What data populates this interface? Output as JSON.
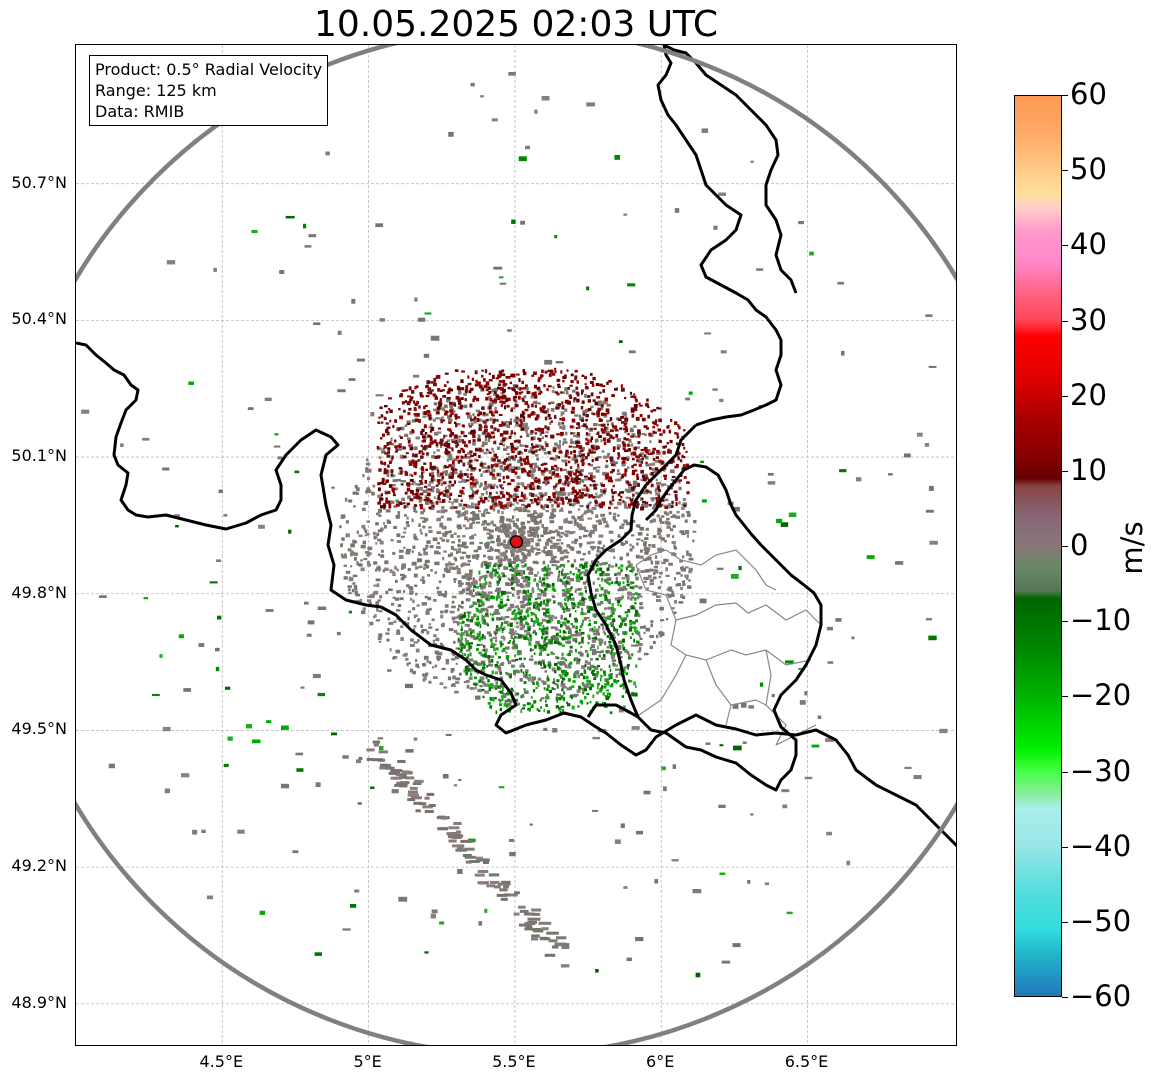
{
  "title": "10.05.2025 02:03 UTC",
  "info": {
    "product": "Product: 0.5° Radial Velocity",
    "range": "Range: 125 km",
    "data": "Data: RMIB"
  },
  "map": {
    "radar_site": {
      "lon": 5.505,
      "lat": 49.914
    },
    "range_km": 125,
    "lon_extent": [
      4.0,
      7.0
    ],
    "lat_extent": [
      48.8,
      51.0
    ],
    "lat_ticks": [
      {
        "value": 50.7,
        "label": "50.7°N"
      },
      {
        "value": 50.4,
        "label": "50.4°N"
      },
      {
        "value": 50.1,
        "label": "50.1°N"
      },
      {
        "value": 49.8,
        "label": "49.8°N"
      },
      {
        "value": 49.5,
        "label": "49.5°N"
      },
      {
        "value": 49.2,
        "label": "49.2°N"
      },
      {
        "value": 48.9,
        "label": "48.9°N"
      }
    ],
    "lon_ticks": [
      {
        "value": 4.5,
        "label": "4.5°E"
      },
      {
        "value": 5.0,
        "label": "5°E"
      },
      {
        "value": 5.5,
        "label": "5.5°E"
      },
      {
        "value": 6.0,
        "label": "6°E"
      },
      {
        "value": 6.5,
        "label": "6.5°E"
      }
    ],
    "border_color": "#000000",
    "subregion_color": "#888888",
    "range_ring_color": "#808080",
    "grid_color": "#bbbbbb"
  },
  "colorbar": {
    "unit": "m/s",
    "min": -60,
    "max": 60,
    "ticks": [
      {
        "value": 60,
        "label": "60"
      },
      {
        "value": 50,
        "label": "50"
      },
      {
        "value": 40,
        "label": "40"
      },
      {
        "value": 30,
        "label": "30"
      },
      {
        "value": 20,
        "label": "20"
      },
      {
        "value": 10,
        "label": "10"
      },
      {
        "value": 0,
        "label": "0"
      },
      {
        "value": -10,
        "label": "−10"
      },
      {
        "value": -20,
        "label": "−20"
      },
      {
        "value": -30,
        "label": "−30"
      },
      {
        "value": -40,
        "label": "−40"
      },
      {
        "value": -50,
        "label": "−50"
      },
      {
        "value": -60,
        "label": "−60"
      }
    ],
    "stops": [
      {
        "value": 60,
        "color": "#ff9955"
      },
      {
        "value": 55,
        "color": "#ffaa66"
      },
      {
        "value": 50,
        "color": "#ffcc88"
      },
      {
        "value": 47,
        "color": "#ffe099"
      },
      {
        "value": 45,
        "color": "#ffcccc"
      },
      {
        "value": 42,
        "color": "#ff99cc"
      },
      {
        "value": 38,
        "color": "#ff88cc"
      },
      {
        "value": 34,
        "color": "#ff6688"
      },
      {
        "value": 30,
        "color": "#ff4455"
      },
      {
        "value": 28,
        "color": "#ff0000"
      },
      {
        "value": 22,
        "color": "#dd0000"
      },
      {
        "value": 17,
        "color": "#aa0000"
      },
      {
        "value": 12,
        "color": "#880000"
      },
      {
        "value": 9,
        "color": "#660000"
      },
      {
        "value": 8,
        "color": "#884444"
      },
      {
        "value": 4,
        "color": "#886677"
      },
      {
        "value": 0,
        "color": "#887777"
      },
      {
        "value": -3,
        "color": "#668866"
      },
      {
        "value": -6,
        "color": "#557755"
      },
      {
        "value": -7,
        "color": "#006600"
      },
      {
        "value": -14,
        "color": "#008800"
      },
      {
        "value": -21,
        "color": "#00bb00"
      },
      {
        "value": -27,
        "color": "#00ee00"
      },
      {
        "value": -30,
        "color": "#44ff44"
      },
      {
        "value": -33,
        "color": "#88ee99"
      },
      {
        "value": -35,
        "color": "#aaeeee"
      },
      {
        "value": -40,
        "color": "#99e6e6"
      },
      {
        "value": -46,
        "color": "#55dddd"
      },
      {
        "value": -51,
        "color": "#33dddd"
      },
      {
        "value": -54,
        "color": "#22bbcc"
      },
      {
        "value": -60,
        "color": "#2277bb"
      }
    ]
  }
}
